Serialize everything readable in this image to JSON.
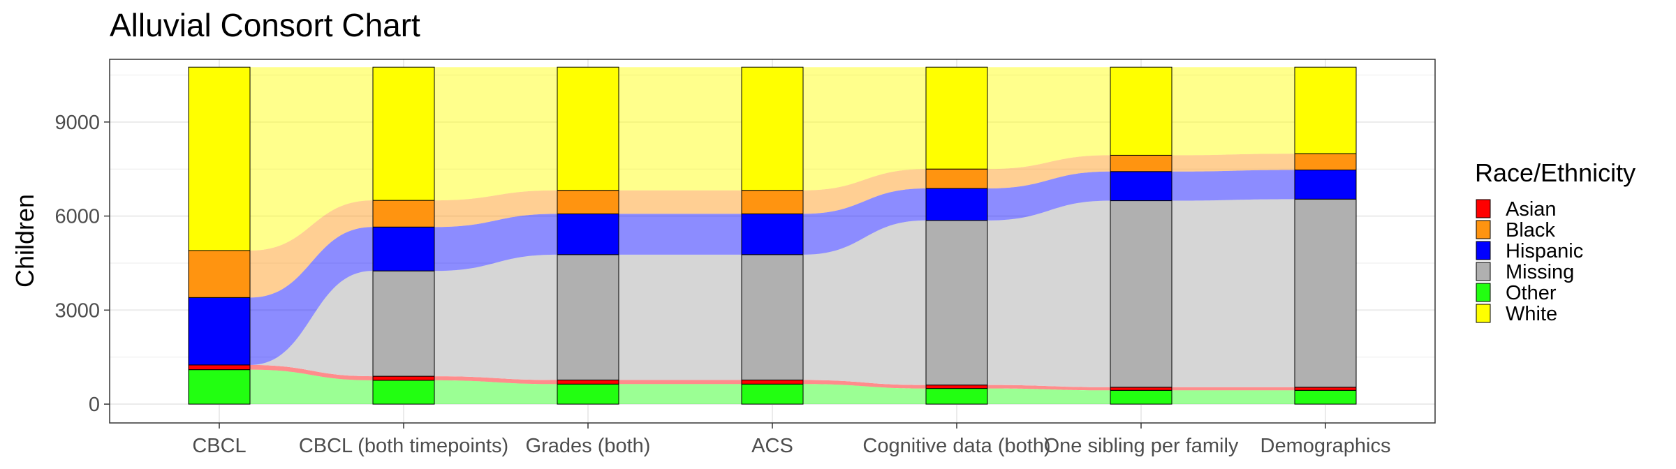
{
  "chart_data": {
    "type": "alluvial",
    "title": "Alluvial Consort Chart",
    "xlabel": "",
    "ylabel": "Children",
    "ylim": [
      -600,
      11000
    ],
    "yticks": [
      0,
      3000,
      6000,
      9000
    ],
    "grid": true,
    "legend": {
      "title": "Race/Ethnicity",
      "position": "right"
    },
    "stages": [
      "CBCL",
      "CBCL (both timepoints)",
      "Grades (both)",
      "ACS",
      "Cognitive data (both)",
      "One sibling per family",
      "Demographics"
    ],
    "categories_bottom_to_top": [
      "Other",
      "Asian",
      "Hispanic",
      "Black",
      "White"
    ],
    "series": [
      {
        "name": "Other",
        "color": "#22ff11",
        "values": [
          1100,
          760,
          640,
          640,
          500,
          440,
          440
        ]
      },
      {
        "name": "Asian",
        "color": "#ff0000",
        "values": [
          150,
          130,
          130,
          130,
          110,
          100,
          100
        ]
      },
      {
        "name": "Missing",
        "color": "#b0b0b0",
        "values": [
          0,
          3360,
          4000,
          4000,
          5250,
          5950,
          6000
        ]
      },
      {
        "name": "Hispanic",
        "color": "#0000ff",
        "values": [
          2150,
          1400,
          1300,
          1300,
          1020,
          930,
          930
        ]
      },
      {
        "name": "Black",
        "color": "#ff9410",
        "values": [
          1500,
          850,
          750,
          750,
          620,
          520,
          520
        ]
      },
      {
        "name": "White",
        "color": "#ffff00",
        "values": [
          5850,
          4250,
          3930,
          3930,
          3250,
          2810,
          2760
        ]
      }
    ],
    "legend_order": [
      "Asian",
      "Black",
      "Hispanic",
      "Missing",
      "Other",
      "White"
    ]
  }
}
